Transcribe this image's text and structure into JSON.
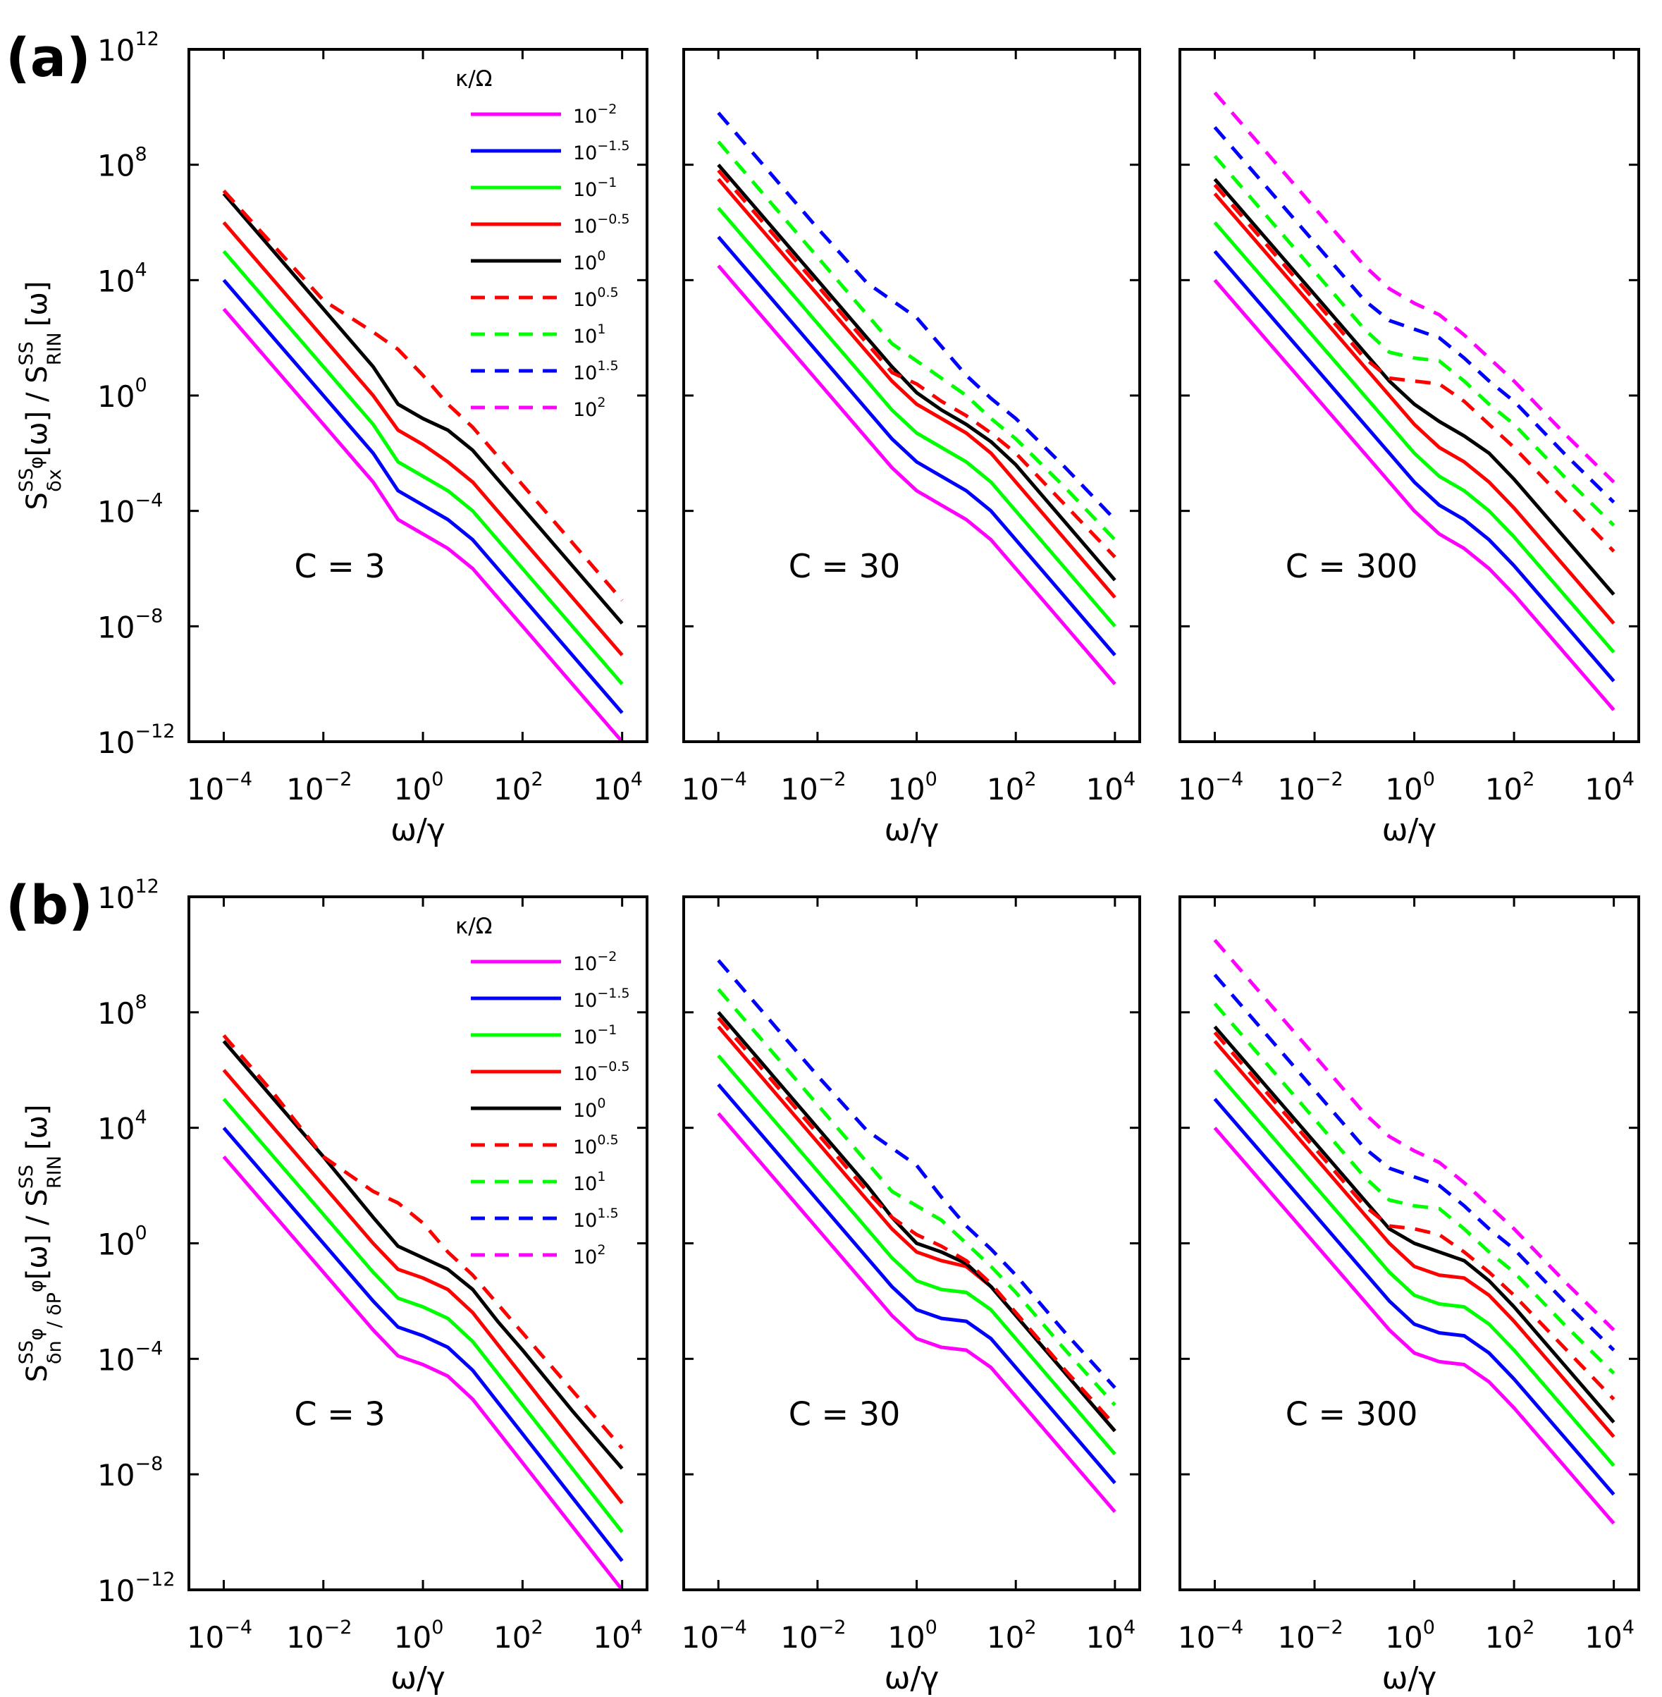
{
  "figure": {
    "row_labels": [
      "(a)",
      "(b)"
    ],
    "y_axis_labels": [
      {
        "base": "S",
        "sup": "SS",
        "sub": "δx",
        "sub_sup": "φ",
        "tail": "[ω] / S",
        "tail_sup": "SS",
        "tail_sub": "RIN",
        "end": "[ω]"
      },
      {
        "base": "S",
        "sup": "SS",
        "sub": "δn",
        "sub_sup": "φ",
        "sub2": "/ δP",
        "sub2_sup": "φ",
        "tail": "[ω] / S",
        "tail_sup": "SS",
        "tail_sub": "RIN",
        "end": "[ω]"
      }
    ],
    "x_axis_label": "ω/γ"
  },
  "chart_data": {
    "type": "line",
    "axes": {
      "xscale": "log",
      "yscale": "log",
      "xlim_exp": [
        -4.7,
        4.5
      ],
      "ylim_exp": [
        -12,
        12
      ],
      "x_tick_exponents": [
        "−4",
        "−2",
        "0",
        "2",
        "4"
      ],
      "y_tick_exponents": [
        "−12",
        "−8",
        "−4",
        "0",
        "4",
        "8",
        "12"
      ],
      "tick_base": "10",
      "xlabel": "ω/γ"
    },
    "legend": {
      "title": "κ/Ω",
      "entries": [
        {
          "base": "10",
          "exp": "−2",
          "color": "#ff00ff",
          "style": "solid"
        },
        {
          "base": "10",
          "exp": "−1.5",
          "color": "#0000ff",
          "style": "solid"
        },
        {
          "base": "10",
          "exp": "−1",
          "color": "#00ff00",
          "style": "solid"
        },
        {
          "base": "10",
          "exp": "−0.5",
          "color": "#ff0000",
          "style": "solid"
        },
        {
          "base": "10",
          "exp": "0",
          "color": "#000000",
          "style": "solid"
        },
        {
          "base": "10",
          "exp": "0.5",
          "color": "#ff0000",
          "style": "dashed"
        },
        {
          "base": "10",
          "exp": "1",
          "color": "#00ff00",
          "style": "dashed"
        },
        {
          "base": "10",
          "exp": "1.5",
          "color": "#0000ff",
          "style": "dashed"
        },
        {
          "base": "10",
          "exp": "2",
          "color": "#ff00ff",
          "style": "dashed"
        }
      ]
    },
    "x_exponents": [
      -4,
      -3,
      -2,
      -1,
      -0.5,
      0,
      0.5,
      1,
      1.5,
      2,
      3,
      4
    ],
    "panels": [
      {
        "row": "a",
        "annotation": "C = 3",
        "series": [
          {
            "kappa_exp": "−2",
            "y_exp": [
              3.0,
              1.0,
              -1.0,
              -3.0,
              -4.3,
              -4.8,
              -5.3,
              -6.0,
              -7.0,
              -8.0,
              -10.0,
              -12.0
            ]
          },
          {
            "kappa_exp": "−1.5",
            "y_exp": [
              4.0,
              2.0,
              0.0,
              -2.0,
              -3.3,
              -3.8,
              -4.3,
              -5.0,
              -6.0,
              -7.0,
              -9.0,
              -11.0
            ]
          },
          {
            "kappa_exp": "−1",
            "y_exp": [
              5.0,
              3.0,
              1.0,
              -1.0,
              -2.3,
              -2.8,
              -3.3,
              -4.0,
              -5.0,
              -6.0,
              -8.0,
              -10.0
            ]
          },
          {
            "kappa_exp": "−0.5",
            "y_exp": [
              6.0,
              4.0,
              2.0,
              0.0,
              -1.2,
              -1.7,
              -2.3,
              -3.0,
              -4.0,
              -5.0,
              -7.0,
              -9.0
            ]
          },
          {
            "kappa_exp": "0",
            "y_exp": [
              7.0,
              5.0,
              3.0,
              1.0,
              -0.3,
              -0.8,
              -1.2,
              -1.9,
              -2.9,
              -3.9,
              -5.9,
              -7.9
            ]
          },
          {
            "kappa_exp": "0.5",
            "y_exp": [
              7.1,
              5.2,
              3.3,
              2.2,
              1.6,
              0.7,
              -0.3,
              -1.1,
              -2.1,
              -3.1,
              -5.1,
              -7.1
            ]
          }
        ]
      },
      {
        "row": "a",
        "annotation": "C = 30",
        "series": [
          {
            "kappa_exp": "−2",
            "y_exp": [
              4.5,
              2.5,
              0.5,
              -1.5,
              -2.5,
              -3.3,
              -3.8,
              -4.3,
              -5.0,
              -6.0,
              -8.0,
              -10.0
            ]
          },
          {
            "kappa_exp": "−1.5",
            "y_exp": [
              5.5,
              3.5,
              1.5,
              -0.5,
              -1.5,
              -2.3,
              -2.8,
              -3.3,
              -4.0,
              -5.0,
              -7.0,
              -9.0
            ]
          },
          {
            "kappa_exp": "−1",
            "y_exp": [
              6.5,
              4.5,
              2.5,
              0.5,
              -0.5,
              -1.3,
              -1.8,
              -2.3,
              -3.0,
              -4.0,
              -6.0,
              -8.0
            ]
          },
          {
            "kappa_exp": "−0.5",
            "y_exp": [
              7.5,
              5.5,
              3.5,
              1.5,
              0.5,
              -0.3,
              -0.8,
              -1.3,
              -2.0,
              -3.0,
              -5.0,
              -7.0
            ]
          },
          {
            "kappa_exp": "0",
            "y_exp": [
              8.0,
              6.0,
              4.0,
              2.0,
              1.0,
              0.1,
              -0.5,
              -1.0,
              -1.6,
              -2.4,
              -4.4,
              -6.4
            ]
          },
          {
            "kappa_exp": "0.5",
            "y_exp": [
              7.8,
              5.8,
              3.8,
              1.8,
              0.8,
              0.4,
              -0.2,
              -0.7,
              -1.3,
              -2.0,
              -3.8,
              -5.6
            ]
          },
          {
            "kappa_exp": "1",
            "y_exp": [
              8.8,
              6.8,
              4.8,
              2.8,
              1.8,
              1.2,
              0.6,
              0.0,
              -0.8,
              -1.5,
              -3.2,
              -5.0
            ]
          },
          {
            "kappa_exp": "1.5",
            "y_exp": [
              9.8,
              7.8,
              5.8,
              3.9,
              3.3,
              2.7,
              1.7,
              0.7,
              -0.1,
              -0.8,
              -2.5,
              -4.3
            ]
          }
        ]
      },
      {
        "row": "a",
        "annotation": "C = 300",
        "series": [
          {
            "kappa_exp": "−2",
            "y_exp": [
              4.0,
              2.0,
              0.0,
              -2.0,
              -3.0,
              -4.0,
              -4.8,
              -5.3,
              -6.0,
              -6.9,
              -8.9,
              -10.9
            ]
          },
          {
            "kappa_exp": "−1.5",
            "y_exp": [
              5.0,
              3.0,
              1.0,
              -1.0,
              -2.0,
              -3.0,
              -3.8,
              -4.3,
              -5.0,
              -5.9,
              -7.9,
              -9.9
            ]
          },
          {
            "kappa_exp": "−1",
            "y_exp": [
              6.0,
              4.0,
              2.0,
              0.0,
              -1.0,
              -2.0,
              -2.8,
              -3.3,
              -4.0,
              -4.9,
              -6.9,
              -8.9
            ]
          },
          {
            "kappa_exp": "−0.5",
            "y_exp": [
              7.0,
              5.0,
              3.0,
              1.0,
              0.0,
              -1.0,
              -1.8,
              -2.3,
              -3.0,
              -3.9,
              -5.9,
              -7.9
            ]
          },
          {
            "kappa_exp": "0",
            "y_exp": [
              7.5,
              5.5,
              3.5,
              1.5,
              0.5,
              -0.3,
              -0.9,
              -1.4,
              -2.0,
              -2.9,
              -4.9,
              -6.9
            ]
          },
          {
            "kappa_exp": "0.5",
            "y_exp": [
              7.3,
              5.3,
              3.3,
              1.3,
              0.6,
              0.5,
              0.4,
              -0.2,
              -1.0,
              -1.8,
              -3.6,
              -5.4
            ]
          },
          {
            "kappa_exp": "1",
            "y_exp": [
              8.3,
              6.3,
              4.3,
              2.3,
              1.5,
              1.3,
              1.2,
              0.5,
              -0.3,
              -1.0,
              -2.8,
              -4.5
            ]
          },
          {
            "kappa_exp": "1.5",
            "y_exp": [
              9.3,
              7.3,
              5.3,
              3.3,
              2.6,
              2.3,
              2.0,
              1.3,
              0.5,
              -0.2,
              -2.0,
              -3.7
            ]
          },
          {
            "kappa_exp": "2",
            "y_exp": [
              10.5,
              8.5,
              6.5,
              4.5,
              3.7,
              3.2,
              2.8,
              2.1,
              1.3,
              0.5,
              -1.3,
              -3.0
            ]
          }
        ]
      },
      {
        "row": "b",
        "annotation": "C = 3",
        "series": [
          {
            "kappa_exp": "−2",
            "y_exp": [
              3.0,
              1.0,
              -1.0,
              -3.0,
              -3.9,
              -4.2,
              -4.6,
              -5.4,
              -6.5,
              -7.6,
              -9.8,
              -12.0
            ]
          },
          {
            "kappa_exp": "−1.5",
            "y_exp": [
              4.0,
              2.0,
              0.0,
              -2.0,
              -2.9,
              -3.2,
              -3.6,
              -4.4,
              -5.5,
              -6.6,
              -8.8,
              -11.0
            ]
          },
          {
            "kappa_exp": "−1",
            "y_exp": [
              5.0,
              3.0,
              1.0,
              -1.0,
              -1.9,
              -2.2,
              -2.6,
              -3.4,
              -4.5,
              -5.6,
              -7.8,
              -10.0
            ]
          },
          {
            "kappa_exp": "−0.5",
            "y_exp": [
              6.0,
              4.0,
              2.0,
              0.0,
              -0.9,
              -1.2,
              -1.6,
              -2.4,
              -3.5,
              -4.6,
              -6.8,
              -9.0
            ]
          },
          {
            "kappa_exp": "0",
            "y_exp": [
              7.0,
              5.0,
              3.0,
              0.9,
              -0.1,
              -0.5,
              -0.9,
              -1.6,
              -2.7,
              -3.7,
              -5.8,
              -7.8
            ]
          },
          {
            "kappa_exp": "0.5",
            "y_exp": [
              7.2,
              5.2,
              3.0,
              1.8,
              1.4,
              0.7,
              -0.3,
              -1.1,
              -2.1,
              -3.1,
              -5.1,
              -7.1
            ]
          }
        ]
      },
      {
        "row": "b",
        "annotation": "C = 30",
        "series": [
          {
            "kappa_exp": "−2",
            "y_exp": [
              4.5,
              2.5,
              0.5,
              -1.5,
              -2.5,
              -3.3,
              -3.6,
              -3.7,
              -4.3,
              -5.3,
              -7.3,
              -9.3
            ]
          },
          {
            "kappa_exp": "−1.5",
            "y_exp": [
              5.5,
              3.5,
              1.5,
              -0.5,
              -1.5,
              -2.3,
              -2.6,
              -2.7,
              -3.3,
              -4.3,
              -6.3,
              -8.3
            ]
          },
          {
            "kappa_exp": "−1",
            "y_exp": [
              6.5,
              4.5,
              2.5,
              0.5,
              -0.5,
              -1.3,
              -1.6,
              -1.7,
              -2.3,
              -3.3,
              -5.3,
              -7.3
            ]
          },
          {
            "kappa_exp": "−0.5",
            "y_exp": [
              7.5,
              5.5,
              3.5,
              1.5,
              0.5,
              -0.3,
              -0.6,
              -0.8,
              -1.5,
              -2.5,
              -4.5,
              -6.5
            ]
          },
          {
            "kappa_exp": "0",
            "y_exp": [
              8.0,
              6.0,
              4.0,
              2.0,
              0.9,
              0.0,
              -0.3,
              -0.7,
              -1.5,
              -2.5,
              -4.5,
              -6.5
            ]
          },
          {
            "kappa_exp": "0.5",
            "y_exp": [
              7.8,
              5.8,
              3.8,
              1.8,
              0.9,
              0.3,
              -0.1,
              -0.6,
              -1.4,
              -2.4,
              -4.4,
              -6.3
            ]
          },
          {
            "kappa_exp": "1",
            "y_exp": [
              8.8,
              6.8,
              4.8,
              2.8,
              1.8,
              1.3,
              0.8,
              0.0,
              -0.8,
              -1.7,
              -3.7,
              -5.6
            ]
          },
          {
            "kappa_exp": "1.5",
            "y_exp": [
              9.8,
              7.8,
              5.8,
              3.9,
              3.3,
              2.7,
              1.6,
              0.6,
              -0.2,
              -1.1,
              -3.1,
              -5.0
            ]
          }
        ]
      },
      {
        "row": "b",
        "annotation": "C = 300",
        "series": [
          {
            "kappa_exp": "−2",
            "y_exp": [
              4.0,
              2.0,
              0.0,
              -2.0,
              -3.0,
              -3.8,
              -4.1,
              -4.2,
              -4.8,
              -5.7,
              -7.7,
              -9.7
            ]
          },
          {
            "kappa_exp": "−1.5",
            "y_exp": [
              5.0,
              3.0,
              1.0,
              -1.0,
              -2.0,
              -2.8,
              -3.1,
              -3.2,
              -3.8,
              -4.7,
              -6.7,
              -8.7
            ]
          },
          {
            "kappa_exp": "−1",
            "y_exp": [
              6.0,
              4.0,
              2.0,
              0.0,
              -1.0,
              -1.8,
              -2.1,
              -2.2,
              -2.8,
              -3.7,
              -5.7,
              -7.7
            ]
          },
          {
            "kappa_exp": "−0.5",
            "y_exp": [
              7.0,
              5.0,
              3.0,
              1.0,
              0.0,
              -0.8,
              -1.1,
              -1.2,
              -1.8,
              -2.7,
              -4.7,
              -6.7
            ]
          },
          {
            "kappa_exp": "0",
            "y_exp": [
              7.5,
              5.5,
              3.5,
              1.5,
              0.5,
              0.0,
              -0.3,
              -0.6,
              -1.3,
              -2.2,
              -4.2,
              -6.2
            ]
          },
          {
            "kappa_exp": "0.5",
            "y_exp": [
              7.3,
              5.3,
              3.3,
              1.3,
              0.6,
              0.5,
              0.3,
              -0.3,
              -1.0,
              -1.8,
              -3.6,
              -5.4
            ]
          },
          {
            "kappa_exp": "1",
            "y_exp": [
              8.3,
              6.3,
              4.3,
              2.3,
              1.5,
              1.3,
              1.2,
              0.5,
              -0.3,
              -1.0,
              -2.8,
              -4.5
            ]
          },
          {
            "kappa_exp": "1.5",
            "y_exp": [
              9.3,
              7.3,
              5.3,
              3.3,
              2.6,
              2.3,
              2.0,
              1.3,
              0.5,
              -0.2,
              -2.0,
              -3.7
            ]
          },
          {
            "kappa_exp": "2",
            "y_exp": [
              10.5,
              8.5,
              6.5,
              4.5,
              3.7,
              3.2,
              2.8,
              2.1,
              1.3,
              0.5,
              -1.3,
              -3.0
            ]
          }
        ]
      }
    ]
  }
}
